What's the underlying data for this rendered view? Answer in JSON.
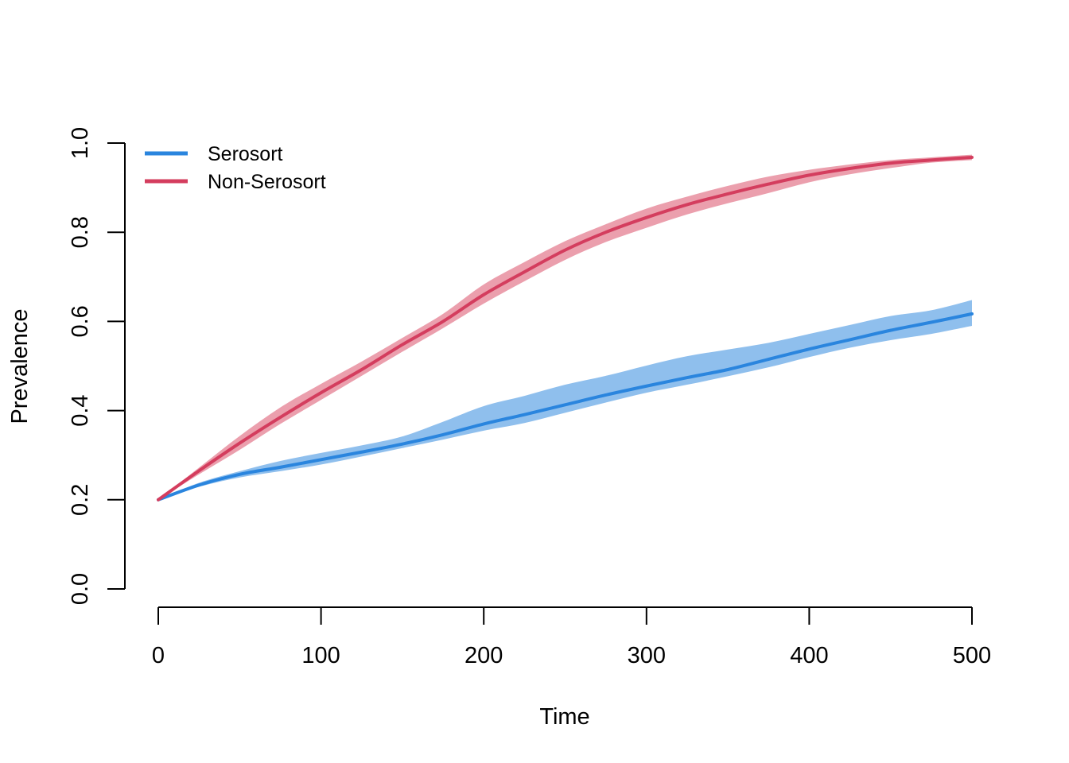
{
  "chart_data": {
    "type": "line",
    "title": "",
    "xlabel": "Time",
    "ylabel": "Prevalence",
    "xlim": [
      0,
      500
    ],
    "ylim": [
      0,
      1
    ],
    "xticks": [
      0,
      100,
      200,
      300,
      400,
      500
    ],
    "yticks": [
      0.0,
      0.2,
      0.4,
      0.6,
      0.8,
      1.0
    ],
    "xtick_labels": [
      "0",
      "100",
      "200",
      "300",
      "400",
      "500"
    ],
    "ytick_labels": [
      "0.0",
      "0.2",
      "0.4",
      "0.6",
      "0.8",
      "1.0"
    ],
    "grid": false,
    "legend_position": "top-left",
    "x": [
      0,
      25,
      50,
      75,
      100,
      125,
      150,
      175,
      200,
      225,
      250,
      275,
      300,
      325,
      350,
      375,
      400,
      425,
      450,
      475,
      500
    ],
    "series": [
      {
        "name": "Serosort",
        "color": "#2a85de",
        "band_color": "#8fbfed",
        "values": [
          0.2,
          0.233,
          0.257,
          0.273,
          0.29,
          0.307,
          0.325,
          0.346,
          0.37,
          0.391,
          0.413,
          0.435,
          0.455,
          0.474,
          0.492,
          0.515,
          0.538,
          0.559,
          0.58,
          0.598,
          0.617
        ],
        "lower": [
          0.2,
          0.229,
          0.25,
          0.264,
          0.279,
          0.297,
          0.316,
          0.335,
          0.355,
          0.372,
          0.395,
          0.418,
          0.44,
          0.458,
          0.477,
          0.497,
          0.52,
          0.541,
          0.558,
          0.572,
          0.59
        ],
        "upper": [
          0.2,
          0.238,
          0.264,
          0.287,
          0.305,
          0.322,
          0.342,
          0.375,
          0.41,
          0.433,
          0.458,
          0.478,
          0.501,
          0.522,
          0.537,
          0.552,
          0.572,
          0.592,
          0.612,
          0.625,
          0.648
        ]
      },
      {
        "name": "Non-Serosort",
        "color": "#d43d5e",
        "band_color": "#eb9fad",
        "values": [
          0.2,
          0.265,
          0.327,
          0.385,
          0.44,
          0.492,
          0.548,
          0.6,
          0.66,
          0.711,
          0.76,
          0.8,
          0.833,
          0.862,
          0.886,
          0.908,
          0.928,
          0.943,
          0.955,
          0.962,
          0.968
        ],
        "lower": [
          0.2,
          0.257,
          0.312,
          0.37,
          0.424,
          0.478,
          0.532,
          0.585,
          0.64,
          0.69,
          0.738,
          0.778,
          0.81,
          0.84,
          0.865,
          0.888,
          0.912,
          0.93,
          0.944,
          0.956,
          0.962
        ],
        "upper": [
          0.2,
          0.272,
          0.343,
          0.407,
          0.46,
          0.51,
          0.563,
          0.617,
          0.683,
          0.733,
          0.78,
          0.818,
          0.853,
          0.88,
          0.904,
          0.925,
          0.94,
          0.952,
          0.962,
          0.968,
          0.974
        ]
      }
    ]
  }
}
